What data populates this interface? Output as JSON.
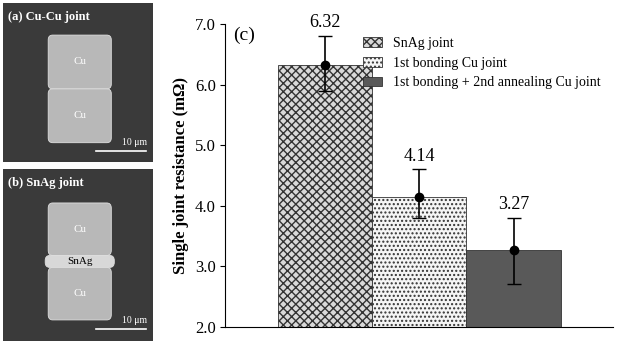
{
  "chart_data": {
    "type": "bar",
    "annotation": "(c)",
    "y_label": "Single joint resistance (mΩ)",
    "categories": [
      null
    ],
    "series": [
      {
        "name": "SnAg joint",
        "color": "#d9d9d9",
        "values": [
          6.32
        ],
        "error_low": [
          0.42
        ],
        "error_high": [
          0.48
        ]
      },
      {
        "name": "1st bonding Cu joint",
        "color": "#f5f5f5",
        "values": [
          4.14
        ],
        "error_low": [
          0.34
        ],
        "error_high": [
          0.46
        ]
      },
      {
        "name": "1st bonding + 2nd annealing Cu joint",
        "color": "#595959",
        "values": [
          3.27
        ],
        "error_low": [
          0.57
        ],
        "error_high": [
          0.53
        ]
      }
    ],
    "ylim": [
      2,
      7
    ],
    "yticks": [
      {
        "value": 2,
        "label": "2.0"
      },
      {
        "value": 3,
        "label": "3.0"
      },
      {
        "value": 4,
        "label": "4.0"
      },
      {
        "value": 5,
        "label": "5.0"
      },
      {
        "value": 6,
        "label": "6.0"
      },
      {
        "value": 7,
        "label": "7.0"
      }
    ],
    "data_labels": true,
    "legend": "upper right",
    "tick_labels": "y",
    "grid": false
  },
  "panels": [
    {
      "label": "(a) Cu-Cu joint",
      "regions": [
        "Cu",
        "Cu"
      ],
      "scale_bar": "10 μm"
    },
    {
      "label": "(b) SnAg joint",
      "regions": [
        "Cu",
        "SnAg",
        "Cu"
      ],
      "scale_bar": "10 μm"
    }
  ]
}
